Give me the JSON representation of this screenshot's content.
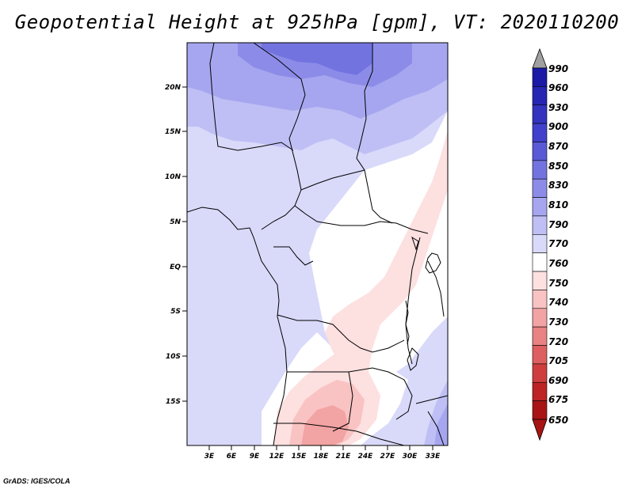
{
  "title": "Geopotential Height at 925hPa [gpm], VT: 2020110200",
  "credit": "GrADS: IGES/COLA",
  "map": {
    "lat_ticks": [
      "20N",
      "15N",
      "10N",
      "5N",
      "EQ",
      "5S",
      "10S",
      "15S"
    ],
    "lon_ticks": [
      "3E",
      "6E",
      "9E",
      "12E",
      "15E",
      "18E",
      "21E",
      "24E",
      "27E",
      "30E",
      "33E"
    ]
  },
  "colorbar": {
    "levels": [
      "990",
      "960",
      "930",
      "900",
      "870",
      "850",
      "830",
      "810",
      "790",
      "770",
      "760",
      "750",
      "740",
      "730",
      "720",
      "705",
      "690",
      "675",
      "650"
    ],
    "colors": [
      "#1a1aa6",
      "#2626b3",
      "#3333bf",
      "#4040cc",
      "#5a5ad6",
      "#7373e0",
      "#8c8ce8",
      "#a6a6f0",
      "#bfbff5",
      "#d9d9fa",
      "#ffffff",
      "#fde0e0",
      "#f9c3c3",
      "#f2a3a3",
      "#e98282",
      "#de5f5f",
      "#cf3e3e",
      "#bd2323",
      "#a81414"
    ],
    "top_arrow_color": "#a0a0a0",
    "bottom_arrow_color": "#a81414"
  }
}
